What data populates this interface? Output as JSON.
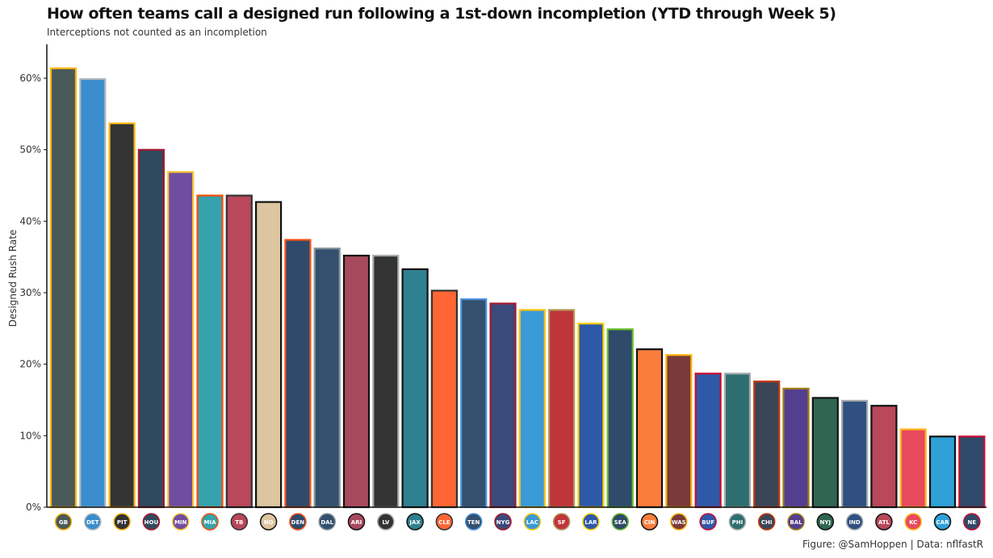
{
  "chart_data": {
    "type": "bar",
    "title": "How often teams call a designed run following a 1st-down incompletion (YTD through Week 5)",
    "subtitle": "Interceptions not counted as an incompletion",
    "xlabel": "",
    "ylabel": "Designed Rush Rate",
    "ylim": [
      0,
      0.64
    ],
    "yticks": [
      0,
      0.1,
      0.2,
      0.3,
      0.4,
      0.5,
      0.6
    ],
    "ytick_labels": [
      "0%",
      "10%",
      "20%",
      "30%",
      "40%",
      "50%",
      "60%"
    ],
    "grid": false,
    "legend": "none",
    "caption": "Figure: @SamHoppen | Data: nflfastR",
    "categories": [
      "GB",
      "DET",
      "PIT",
      "HOU",
      "MIN",
      "MIA",
      "TB",
      "NO",
      "DEN",
      "DAL",
      "ARI",
      "LV",
      "JAX",
      "CLE",
      "TEN",
      "NYG",
      "LAC",
      "SF",
      "LAR",
      "SEA",
      "CIN",
      "WAS",
      "BUF",
      "PHI",
      "CHI",
      "BAL",
      "NYJ",
      "IND",
      "ATL",
      "KC",
      "CAR",
      "NE"
    ],
    "values": [
      0.615,
      0.6,
      0.538,
      0.501,
      0.47,
      0.437,
      0.437,
      0.428,
      0.375,
      0.363,
      0.353,
      0.353,
      0.334,
      0.304,
      0.292,
      0.286,
      0.277,
      0.277,
      0.258,
      0.25,
      0.222,
      0.214,
      0.188,
      0.188,
      0.177,
      0.167,
      0.154,
      0.15,
      0.143,
      0.11,
      0.1,
      0.1
    ],
    "fill_colors": [
      "#4a5a58",
      "#3a8dcc",
      "#333333",
      "#2f4a5e",
      "#6f4ea0",
      "#35a3ad",
      "#b8485a",
      "#dcc59f",
      "#2f4a6a",
      "#33506e",
      "#a84a5e",
      "#333333",
      "#2f8090",
      "#ff6633",
      "#33506e",
      "#3a4a7a",
      "#3a9ad6",
      "#c0353a",
      "#2e58a8",
      "#2f4a6a",
      "#fb7d3c",
      "#7a3a3a",
      "#2f58a8",
      "#2f6e70",
      "#3a4558",
      "#543e90",
      "#2f6650",
      "#2f5080",
      "#b8485a",
      "#e84a5e",
      "#2fa0d8",
      "#2f4a6a"
    ],
    "border_colors": [
      "#ffb612",
      "#b0b7bc",
      "#ffb612",
      "#a71930",
      "#ffc62f",
      "#fc4c02",
      "#333333",
      "#111111",
      "#fb4f14",
      "#869397",
      "#111111",
      "#a5acaf",
      "#111111",
      "#333333",
      "#4b92db",
      "#a71930",
      "#ffc20e",
      "#b3995d",
      "#ffd100",
      "#69be28",
      "#111111",
      "#ffb612",
      "#c60c30",
      "#a5acaf",
      "#c83803",
      "#9e7c0c",
      "#111111",
      "#a2aaad",
      "#111111",
      "#ffb81c",
      "#111111",
      "#c60c30"
    ]
  }
}
